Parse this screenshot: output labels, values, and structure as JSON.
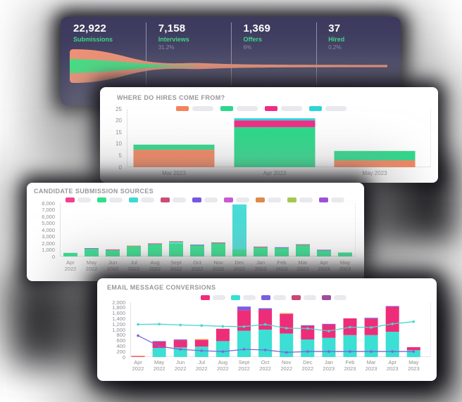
{
  "funnel_card": {
    "bg_color": "#3c3b5f",
    "outer_color": "#f89072",
    "inner_color": "#3be77f",
    "label_color": "#3fd787",
    "stats": [
      {
        "value": "22,922",
        "label": "Submissions",
        "pct": ""
      },
      {
        "value": "7,158",
        "label": "Interviews",
        "pct": "31.2%"
      },
      {
        "value": "1,369",
        "label": "Offers",
        "pct": "6%"
      },
      {
        "value": "37",
        "label": "Hired",
        "pct": "0.2%"
      }
    ]
  },
  "chart_data": [
    {
      "id": "hires",
      "type": "bar",
      "title": "WHERE DO HIRES COME FROM?",
      "stacked": true,
      "grid": false,
      "legend_position": "top",
      "legend_labels_redacted": true,
      "categories": [
        "Mar 2023",
        "Apr 2023",
        "May 2023"
      ],
      "y_ticks": [
        "25",
        "20",
        "15",
        "10",
        "5",
        "0"
      ],
      "ylim": [
        0,
        25
      ],
      "legend_colors": [
        "#f5845c",
        "#2cd98a",
        "#ef2d86",
        "#27d8d8"
      ],
      "series": [
        {
          "name": "orange",
          "color": "#f5845c",
          "values": [
            7.5,
            0,
            3
          ]
        },
        {
          "name": "green",
          "color": "#2cd98a",
          "values": [
            2.2,
            17.2,
            4
          ]
        },
        {
          "name": "pink",
          "color": "#ef2d86",
          "values": [
            0,
            2.9,
            0
          ]
        },
        {
          "name": "teal",
          "color": "#27d8d8",
          "values": [
            0,
            0.9,
            0
          ]
        }
      ]
    },
    {
      "id": "sources",
      "type": "bar",
      "title": "CANDIDATE SUBMISSION SOURCES",
      "stacked": true,
      "grid": false,
      "legend_position": "top",
      "legend_labels_redacted": true,
      "categories": [
        "Apr 2022",
        "May 2022",
        "Jun 2022",
        "Jul 2022",
        "Aug 2022",
        "Sept 2022",
        "Oct 2022",
        "Nov 2022",
        "Dec 2022",
        "Jan 2023",
        "Feb 2023",
        "Mar 2023",
        "Apr 2023",
        "May 2023"
      ],
      "y_ticks": [
        "8,000",
        "7,000",
        "6,000",
        "5,000",
        "4,000",
        "3,000",
        "2,000",
        "1,000",
        "0"
      ],
      "ylim": [
        0,
        8000
      ],
      "legend_colors": [
        "#f23f8f",
        "#2ee08c",
        "#3fd9d3",
        "#c94f75",
        "#7558e0",
        "#cb5ad1",
        "#dd8a4c",
        "#a4c94e",
        "#9c52d6"
      ],
      "series": [
        {
          "name": "green",
          "color": "#2ee08c",
          "values": [
            550,
            1150,
            1000,
            1550,
            1880,
            1900,
            1700,
            2050,
            1050,
            1400,
            1300,
            1750,
            950,
            600
          ]
        },
        {
          "name": "teal",
          "color": "#4adcd7",
          "values": [
            0,
            0,
            0,
            0,
            0,
            380,
            0,
            0,
            6750,
            0,
            0,
            0,
            0,
            0
          ]
        },
        {
          "name": "pink",
          "color": "#ef3e93",
          "values": [
            0,
            0,
            60,
            0,
            90,
            0,
            0,
            60,
            0,
            80,
            0,
            80,
            0,
            0
          ]
        },
        {
          "name": "purple",
          "color": "#7558e0",
          "values": [
            0,
            100,
            0,
            0,
            0,
            0,
            80,
            0,
            0,
            0,
            90,
            0,
            60,
            0
          ]
        },
        {
          "name": "orange",
          "color": "#e0884a",
          "values": [
            0,
            0,
            0,
            80,
            0,
            40,
            0,
            0,
            0,
            0,
            0,
            0,
            0,
            0
          ]
        }
      ]
    },
    {
      "id": "email",
      "type": "bar+line",
      "title": "EMAIL MESSAGE CONVERSIONS",
      "stacked": true,
      "grid": false,
      "legend_position": "top",
      "legend_labels_redacted": true,
      "categories": [
        "Apr 2022",
        "May 2022",
        "Jun 2022",
        "Jul 2022",
        "Aug 2022",
        "Sept 2022",
        "Oct 2022",
        "Nov 2022",
        "Dec 2022",
        "Jan 2023",
        "Feb 2023",
        "Mar 2023",
        "Apr 2023",
        "May 2023"
      ],
      "y_ticks": [
        "2,000",
        "1,800",
        "1,600",
        "1,400",
        "1,200",
        "1,000",
        "800",
        "600",
        "400",
        "200",
        "0"
      ],
      "ylim": [
        0,
        2000
      ],
      "legend_colors": [
        "#ee2d79",
        "#35e0d4",
        "#7a5fe0",
        "#cc4574",
        "#a04b9e"
      ],
      "series": [
        {
          "name": "salmon",
          "color": "#f0605e",
          "values": [
            40,
            0,
            0,
            0,
            0,
            0,
            0,
            0,
            0,
            0,
            0,
            0,
            0,
            0
          ]
        },
        {
          "name": "teal",
          "color": "#3bdfd3",
          "values": [
            0,
            330,
            350,
            380,
            580,
            960,
            1000,
            860,
            640,
            700,
            800,
            800,
            920,
            250
          ]
        },
        {
          "name": "pink",
          "color": "#ee2d79",
          "values": [
            0,
            220,
            260,
            240,
            450,
            750,
            730,
            710,
            500,
            490,
            610,
            600,
            920,
            110
          ]
        },
        {
          "name": "purple",
          "color": "#7a5fe0",
          "values": [
            0,
            30,
            30,
            0,
            0,
            130,
            50,
            0,
            20,
            20,
            0,
            30,
            20,
            0
          ]
        },
        {
          "name": "orange",
          "color": "#e8883f",
          "values": [
            0,
            0,
            0,
            30,
            0,
            0,
            0,
            30,
            0,
            0,
            0,
            0,
            0,
            0
          ]
        }
      ],
      "lines": [
        {
          "name": "teal-line",
          "color": "#45d9cf",
          "values": [
            1190,
            1200,
            1170,
            1150,
            1120,
            1110,
            1190,
            1050,
            1040,
            950,
            1090,
            1080,
            1210,
            1290
          ]
        },
        {
          "name": "purple-line",
          "color": "#7c67d9",
          "values": [
            780,
            390,
            280,
            230,
            200,
            280,
            260,
            170,
            200,
            200,
            200,
            200,
            200,
            200
          ]
        }
      ]
    }
  ]
}
